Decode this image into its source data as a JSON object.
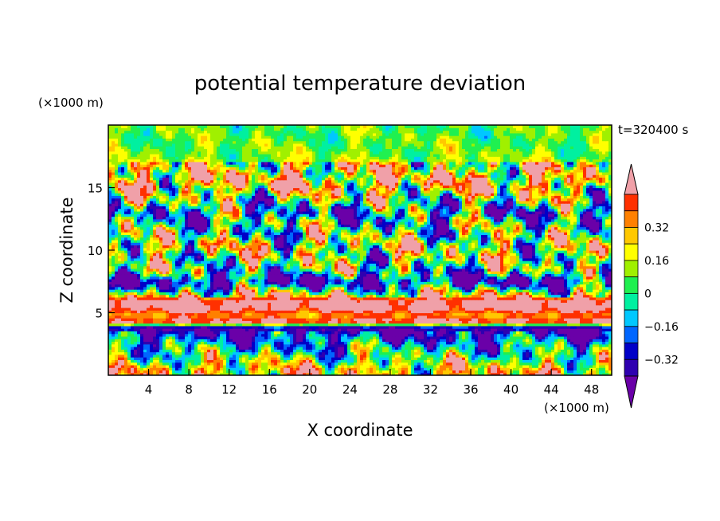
{
  "chart_data": {
    "type": "heatmap",
    "title": "potential temperature deviation",
    "xlabel": "X coordinate",
    "ylabel": "Z coordinate",
    "x_unit": "(×1000 m)",
    "y_unit": "(×1000 m)",
    "time_label": "t=320400 s",
    "xlim": [
      0,
      50
    ],
    "ylim": [
      0,
      20
    ],
    "x_ticks": [
      4,
      8,
      12,
      16,
      20,
      24,
      28,
      32,
      36,
      40,
      44,
      48
    ],
    "y_ticks": [
      5,
      10,
      15
    ],
    "colorbar": {
      "levels": [
        -0.48,
        -0.4,
        -0.32,
        -0.24,
        -0.16,
        -0.08,
        0,
        0.08,
        0.16,
        0.24,
        0.32,
        0.4,
        0.48
      ],
      "labeled_levels": [
        0.32,
        0.16,
        0,
        -0.16,
        -0.32
      ],
      "colors": [
        "#6a00a8",
        "#2e00b0",
        "#0000c8",
        "#0066ff",
        "#00c8ff",
        "#00f0a0",
        "#20f050",
        "#a0f000",
        "#ffff00",
        "#ffc800",
        "#ff8000",
        "#ff3000",
        "#f0a0a8"
      ],
      "extend": "both"
    },
    "grid": false,
    "bands": [
      {
        "z": 0.5,
        "value": 0.2
      },
      {
        "z": 3.8,
        "value": -0.45
      },
      {
        "z": 4.3,
        "value": 0.5
      },
      {
        "z": 4.8,
        "value": 0.3
      },
      {
        "z": 5.4,
        "value": 0.5
      },
      {
        "z": 6.0,
        "value": 0.5
      },
      {
        "z": 7.5,
        "value": -0.45
      },
      {
        "z": 8.5,
        "value": 0.0
      },
      {
        "z": 10.5,
        "value": 0.1
      },
      {
        "z": 13.0,
        "value": -0.2
      },
      {
        "z": 15.5,
        "value": 0.3
      },
      {
        "z": 17.5,
        "value": 0.05
      },
      {
        "z": 19.5,
        "value": 0.02
      }
    ]
  }
}
